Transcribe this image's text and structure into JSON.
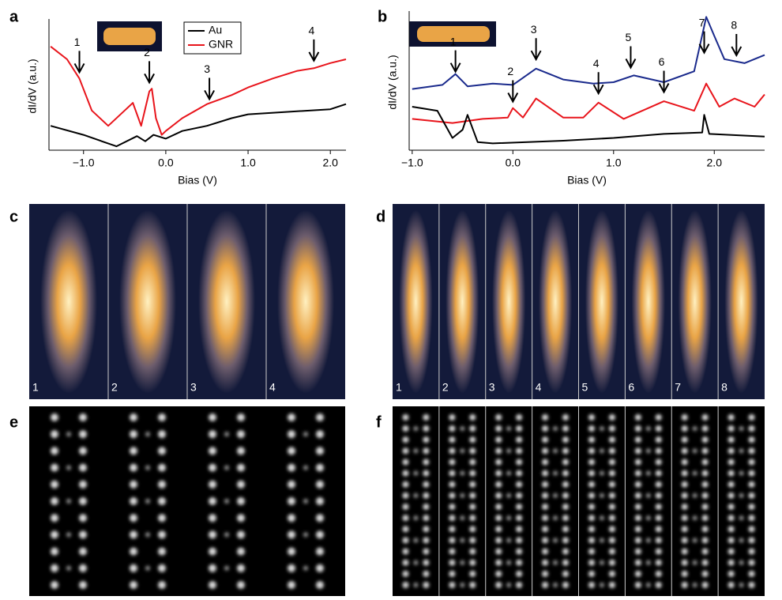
{
  "chart_data": [
    {
      "type": "line",
      "panel": "a",
      "xlabel": "Bias (V)",
      "ylabel": "dI/dV (a.u.)",
      "xlim": [
        -1.42,
        2.19
      ],
      "ylim": [
        0,
        10
      ],
      "xticks": [
        {
          "value": -1,
          "label": "−1.0"
        },
        {
          "value": 0,
          "label": "0.0"
        },
        {
          "value": 1,
          "label": "1.0"
        },
        {
          "value": 2,
          "label": "2.0"
        }
      ],
      "legend": "upper center",
      "series": [
        {
          "name": "Au",
          "color": "#000000",
          "x": [
            -1.4,
            -1.0,
            -0.6,
            -0.35,
            -0.25,
            -0.15,
            0.0,
            0.2,
            0.5,
            0.8,
            1.0,
            1.5,
            2.0,
            2.19
          ],
          "values": [
            1.9,
            1.2,
            0.3,
            1.1,
            0.7,
            1.2,
            0.9,
            1.5,
            1.9,
            2.5,
            2.8,
            3.0,
            3.2,
            3.6
          ]
        },
        {
          "name": "GNR",
          "color": "#e8141b",
          "x": [
            -1.4,
            -1.2,
            -1.05,
            -0.9,
            -0.7,
            -0.5,
            -0.4,
            -0.3,
            -0.2,
            -0.17,
            -0.12,
            -0.05,
            0.0,
            0.2,
            0.5,
            0.8,
            1.0,
            1.3,
            1.6,
            1.8,
            2.0,
            2.19
          ],
          "values": [
            8.1,
            7.1,
            5.6,
            3.1,
            1.9,
            3.1,
            3.7,
            1.9,
            4.6,
            4.8,
            2.5,
            1.2,
            1.5,
            2.5,
            3.6,
            4.3,
            4.9,
            5.6,
            6.2,
            6.4,
            6.8,
            7.1
          ]
        }
      ],
      "annotations": [
        {
          "label": "1",
          "x": -1.05,
          "y": 5.9
        },
        {
          "label": "2",
          "x": -0.2,
          "y": 5.1
        },
        {
          "label": "3",
          "x": 0.53,
          "y": 3.8
        },
        {
          "label": "4",
          "x": 1.8,
          "y": 6.8
        }
      ]
    },
    {
      "type": "line",
      "panel": "b",
      "xlabel": "Bias (V)",
      "ylabel": "dI/dV (a.u.)",
      "xlim": [
        -1.03,
        2.5
      ],
      "ylim": [
        0,
        10
      ],
      "xticks": [
        {
          "value": -1,
          "label": "−1.0"
        },
        {
          "value": 0,
          "label": "0.0"
        },
        {
          "value": 1,
          "label": "1.0"
        },
        {
          "value": 2,
          "label": "2.0"
        }
      ],
      "series": [
        {
          "color": "#1a2a8c",
          "x": [
            -1.0,
            -0.7,
            -0.57,
            -0.45,
            -0.2,
            0.0,
            0.23,
            0.5,
            0.8,
            1.0,
            1.2,
            1.5,
            1.8,
            1.92,
            2.0,
            2.1,
            2.3,
            2.5
          ],
          "values": [
            4.5,
            4.8,
            5.6,
            4.7,
            4.9,
            4.8,
            6.0,
            5.2,
            4.9,
            5.0,
            5.5,
            5.0,
            5.8,
            9.8,
            8.4,
            6.7,
            6.4,
            7.0
          ]
        },
        {
          "color": "#e8141b",
          "x": [
            -1.0,
            -0.6,
            -0.3,
            -0.05,
            0.0,
            0.1,
            0.23,
            0.5,
            0.7,
            0.85,
            1.1,
            1.5,
            1.8,
            1.92,
            2.05,
            2.2,
            2.4,
            2.5
          ],
          "values": [
            2.3,
            2.0,
            2.3,
            2.4,
            3.1,
            2.4,
            3.8,
            2.4,
            2.4,
            3.5,
            2.3,
            3.6,
            2.9,
            4.9,
            3.2,
            3.8,
            3.2,
            4.1
          ]
        },
        {
          "color": "#000000",
          "x": [
            -1.0,
            -0.75,
            -0.6,
            -0.5,
            -0.45,
            -0.35,
            -0.2,
            0.5,
            1.0,
            1.5,
            1.88,
            1.9,
            1.95,
            2.5
          ],
          "values": [
            3.2,
            2.9,
            0.9,
            1.5,
            2.6,
            0.6,
            0.5,
            0.7,
            0.9,
            1.2,
            1.3,
            2.6,
            1.2,
            1.0
          ]
        }
      ],
      "annotations": [
        {
          "label": "1",
          "x": -0.57,
          "y": 5.6
        },
        {
          "label": "2",
          "x": 0.0,
          "y": 3.4
        },
        {
          "label": "3",
          "x": 0.23,
          "y": 6.5
        },
        {
          "label": "4",
          "x": 0.85,
          "y": 4.0
        },
        {
          "label": "5",
          "x": 1.17,
          "y": 5.9
        },
        {
          "label": "6",
          "x": 1.5,
          "y": 4.1
        },
        {
          "label": "7",
          "x": 1.9,
          "y": 7.0
        },
        {
          "label": "8",
          "x": 2.22,
          "y": 6.8
        }
      ]
    }
  ],
  "images": [
    {
      "panel": "c",
      "frame_labels": [
        "1",
        "2",
        "3",
        "4"
      ]
    },
    {
      "panel": "d",
      "frame_labels": [
        "1",
        "2",
        "3",
        "4",
        "5",
        "6",
        "7",
        "8"
      ]
    },
    {
      "panel": "e"
    },
    {
      "panel": "f"
    }
  ]
}
